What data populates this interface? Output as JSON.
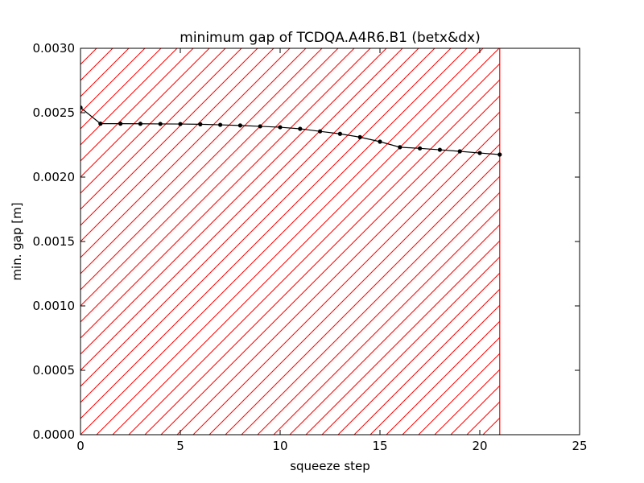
{
  "chart_data": {
    "type": "line",
    "title": "minimum gap of TCDQA.A4R6.B1 (betx&dx)",
    "xlabel": "squeeze step",
    "ylabel": "min. gap [m]",
    "xlim": [
      0,
      25
    ],
    "ylim": [
      0,
      0.003
    ],
    "xticks": [
      0,
      5,
      10,
      15,
      20,
      25
    ],
    "xtick_labels": [
      "0",
      "5",
      "10",
      "15",
      "20",
      "25"
    ],
    "yticks": [
      0,
      0.0005,
      0.001,
      0.0015,
      0.002,
      0.0025,
      0.003
    ],
    "ytick_labels": [
      "0.0000",
      "0.0005",
      "0.0010",
      "0.0015",
      "0.0020",
      "0.0025",
      "0.0030"
    ],
    "grid": false,
    "legend": "none",
    "hatched_region": {
      "x_from": 0,
      "x_to": 21,
      "color": "#ff0000"
    },
    "series": [
      {
        "color": "#000000",
        "marker": "circle",
        "x": [
          0,
          1,
          2,
          3,
          4,
          5,
          6,
          7,
          8,
          9,
          10,
          11,
          12,
          13,
          14,
          15,
          16,
          17,
          18,
          19,
          20,
          21
        ],
        "y": [
          0.00254,
          0.002415,
          0.002415,
          0.002414,
          0.002413,
          0.002412,
          0.00241,
          0.002406,
          0.002401,
          0.002394,
          0.002387,
          0.002375,
          0.002355,
          0.002336,
          0.00231,
          0.002275,
          0.002232,
          0.002223,
          0.002212,
          0.0022,
          0.002187,
          0.002175
        ]
      }
    ]
  }
}
